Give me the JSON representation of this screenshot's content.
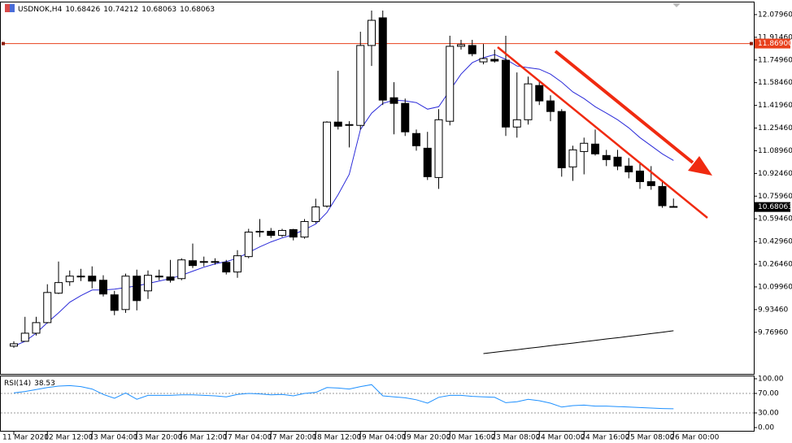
{
  "chart_data": {
    "type": "candlestick",
    "symbol": "USDNOK,H4",
    "categories": [
      "11 Mar 2020",
      null,
      null,
      "12 Mar 12:00",
      null,
      null,
      null,
      "13 Mar 04:00",
      null,
      null,
      null,
      "13 Mar 20:00",
      null,
      null,
      null,
      "16 Mar 12:00",
      null,
      null,
      null,
      "17 Mar 04:00",
      null,
      null,
      null,
      "17 Mar 20:00",
      null,
      null,
      null,
      "18 Mar 12:00",
      null,
      null,
      null,
      "19 Mar 04:00",
      null,
      null,
      null,
      "19 Mar 20:00",
      null,
      null,
      null,
      "20 Mar 16:00",
      null,
      null,
      null,
      "23 Mar 08:00",
      null,
      null,
      null,
      "24 Mar 00:00",
      null,
      null,
      null,
      "24 Mar 16:00",
      null,
      null,
      null,
      "25 Mar 08:00",
      null,
      null,
      null,
      "26 Mar 00:00"
    ],
    "open": [
      9.669,
      9.704,
      9.763,
      9.84,
      10.054,
      10.137,
      10.172,
      10.178,
      10.148,
      10.042,
      9.935,
      10.178,
      10.071,
      10.178,
      10.172,
      10.16,
      10.29,
      10.278,
      10.284,
      10.278,
      10.208,
      10.32,
      10.498,
      10.504,
      10.474,
      10.516,
      10.462,
      10.575,
      10.687,
      11.298,
      11.274,
      11.274,
      11.855,
      12.056,
      11.475,
      11.434,
      11.215,
      11.108,
      10.895,
      11.304,
      11.849,
      11.855,
      11.736,
      11.754,
      11.748,
      11.262,
      11.315,
      11.564,
      11.452,
      11.375,
      10.972,
      11.084,
      11.138,
      11.055,
      11.043,
      10.978,
      10.942,
      10.865,
      10.83,
      10.68426
    ],
    "high": [
      9.704,
      9.882,
      9.882,
      10.119,
      10.284,
      10.219,
      10.231,
      10.249,
      10.184,
      10.071,
      10.196,
      10.225,
      10.219,
      10.225,
      10.296,
      10.308,
      10.415,
      10.32,
      10.308,
      10.296,
      10.367,
      10.522,
      10.593,
      10.528,
      10.522,
      10.522,
      10.593,
      10.741,
      11.304,
      11.671,
      11.304,
      11.955,
      12.109,
      12.109,
      11.588,
      11.469,
      11.244,
      11.227,
      11.392,
      11.926,
      11.896,
      11.896,
      11.866,
      11.825,
      11.926,
      11.659,
      11.629,
      11.6,
      11.493,
      11.392,
      11.126,
      11.185,
      11.244,
      11.096,
      11.096,
      11.037,
      11.007,
      10.978,
      10.877,
      10.74212
    ],
    "low": [
      9.657,
      9.704,
      9.746,
      9.834,
      10.048,
      10.107,
      10.142,
      10.089,
      10.03,
      9.894,
      9.911,
      9.929,
      10.012,
      10.148,
      10.131,
      10.148,
      10.237,
      10.249,
      10.261,
      10.19,
      10.166,
      10.308,
      10.462,
      10.456,
      10.462,
      10.438,
      10.45,
      10.563,
      10.676,
      11.244,
      11.114,
      11.244,
      11.706,
      11.422,
      11.209,
      11.197,
      11.09,
      10.877,
      10.812,
      11.274,
      11.825,
      11.777,
      11.718,
      11.73,
      11.197,
      11.185,
      11.28,
      11.422,
      11.304,
      10.901,
      10.871,
      10.918,
      11.055,
      10.978,
      10.948,
      10.889,
      10.812,
      10.806,
      10.675,
      10.68063
    ],
    "close": [
      9.686,
      9.763,
      9.84,
      10.059,
      10.131,
      10.178,
      10.178,
      10.142,
      10.048,
      9.929,
      10.178,
      10.0,
      10.184,
      10.172,
      10.148,
      10.296,
      10.255,
      10.284,
      10.278,
      10.208,
      10.326,
      10.498,
      10.504,
      10.474,
      10.51,
      10.462,
      10.575,
      10.681,
      11.298,
      11.268,
      11.28,
      11.855,
      12.038,
      11.458,
      11.434,
      11.227,
      11.126,
      10.901,
      11.315,
      11.849,
      11.861,
      11.795,
      11.76,
      11.742,
      11.262,
      11.315,
      11.576,
      11.452,
      11.375,
      10.966,
      11.096,
      11.144,
      11.067,
      11.025,
      10.978,
      10.936,
      10.865,
      10.836,
      10.69,
      10.68063
    ],
    "bull_color": "#ffffff",
    "bear_color": "#000000",
    "ylim": [
      9.467,
      12.168
    ],
    "yticks": [
      {
        "value": 12.0796,
        "label": "12.07960"
      },
      {
        "value": 11.9146,
        "label": "11.91460"
      },
      {
        "value": 11.7496,
        "label": "11.74960"
      },
      {
        "value": 11.5846,
        "label": "11.58460"
      },
      {
        "value": 11.4196,
        "label": "11.41960"
      },
      {
        "value": 11.2546,
        "label": "11.25460"
      },
      {
        "value": 11.0896,
        "label": "11.08960"
      },
      {
        "value": 10.9246,
        "label": "10.92460"
      },
      {
        "value": 10.7596,
        "label": "10.75960"
      },
      {
        "value": 10.5946,
        "label": "10.59460"
      },
      {
        "value": 10.4296,
        "label": "10.42960"
      },
      {
        "value": 10.2646,
        "label": "10.26460"
      },
      {
        "value": 10.0996,
        "label": "10.09960"
      },
      {
        "value": 9.9346,
        "label": "9.93460"
      },
      {
        "value": 9.7696,
        "label": "9.76960"
      }
    ],
    "hline": {
      "value": 11.869,
      "label": "11.86900",
      "color": "#e8401c"
    },
    "moving_averages": [
      {
        "color": "#2b2bd9",
        "values": [
          9.669,
          9.704,
          9.763,
          9.84,
          9.911,
          9.988,
          10.036,
          10.077,
          10.077,
          10.083,
          10.095,
          10.107,
          10.125,
          10.142,
          10.16,
          10.184,
          10.214,
          10.243,
          10.267,
          10.284,
          10.308,
          10.35,
          10.391,
          10.427,
          10.456,
          10.48,
          10.516,
          10.557,
          10.64,
          10.77,
          10.918,
          11.244,
          11.363,
          11.434,
          11.458,
          11.452,
          11.44,
          11.392,
          11.41,
          11.529,
          11.647,
          11.73,
          11.766,
          11.789,
          11.754,
          11.706,
          11.694,
          11.683,
          11.647,
          11.588,
          11.517,
          11.469,
          11.41,
          11.363,
          11.315,
          11.256,
          11.185,
          11.126,
          11.067,
          11.019
        ]
      },
      {
        "color": "#000000",
        "values": [
          null,
          null,
          null,
          null,
          null,
          null,
          null,
          null,
          null,
          null,
          null,
          null,
          null,
          null,
          null,
          null,
          null,
          null,
          null,
          null,
          null,
          null,
          null,
          null,
          null,
          null,
          null,
          null,
          null,
          null,
          null,
          null,
          null,
          null,
          null,
          null,
          null,
          null,
          null,
          null,
          null,
          null,
          9.615,
          9.624,
          9.634,
          9.643,
          9.653,
          9.662,
          9.672,
          9.682,
          9.691,
          9.701,
          9.711,
          9.721,
          9.73,
          9.74,
          9.75,
          9.76,
          9.77,
          9.781
        ]
      }
    ],
    "rsi": {
      "name": "RSI(14)",
      "color": "#1e90ff",
      "values": [
        71,
        74,
        78,
        82,
        85,
        86,
        84,
        79,
        68,
        60,
        71,
        58,
        66,
        66,
        66,
        67,
        67,
        66,
        65,
        63,
        68,
        70,
        69,
        67,
        68,
        65,
        70,
        72,
        82,
        81,
        79,
        84,
        88,
        65,
        63,
        61,
        57,
        50,
        62,
        66,
        66,
        64,
        63,
        62,
        51,
        53,
        58,
        55,
        50,
        42,
        45,
        46,
        44,
        44,
        43,
        42,
        41,
        40,
        39,
        38.53
      ],
      "ylim": [
        0,
        100
      ],
      "yticks": [
        {
          "value": 100,
          "label": "100.00"
        },
        {
          "value": 70,
          "label": "70.00"
        },
        {
          "value": 30,
          "label": "30.00"
        },
        {
          "value": 0,
          "label": "0.00"
        }
      ]
    }
  }
}
